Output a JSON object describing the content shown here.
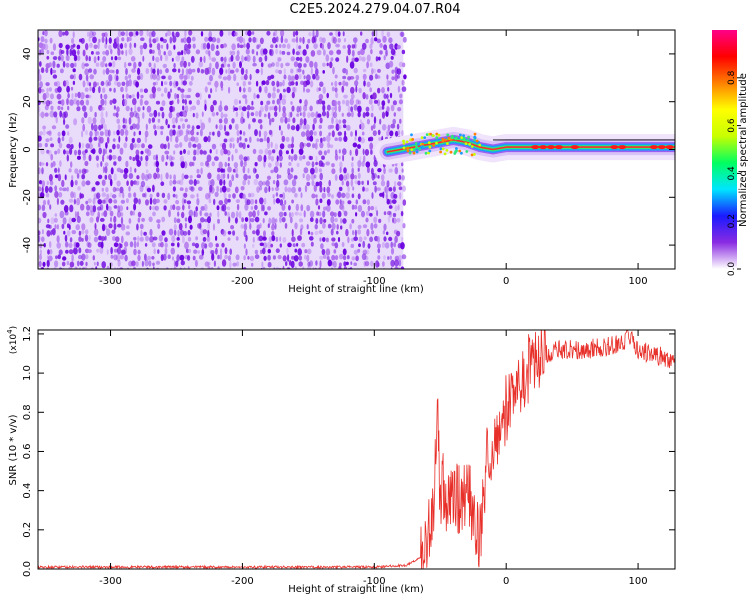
{
  "title": "C2E5.2024.279.04.07.R04",
  "chart_data": [
    {
      "type": "heatmap",
      "xlabel": "Height of straight line (km)",
      "ylabel": "Frequency (Hz)",
      "xlim": [
        -355,
        128
      ],
      "ylim": [
        -50,
        50
      ],
      "x_ticks": [
        -300,
        -200,
        -100,
        0,
        100
      ],
      "y_ticks": [
        -40,
        -20,
        0,
        20,
        40
      ],
      "noise_region": {
        "x_from": -355,
        "x_to": -78,
        "freq_from": -50,
        "freq_to": 50,
        "color": "#6a00e0"
      },
      "carrier_track": [
        {
          "x": -90,
          "f": -1
        },
        {
          "x": -80,
          "f": 0
        },
        {
          "x": -70,
          "f": 1
        },
        {
          "x": -60,
          "f": 2
        },
        {
          "x": -50,
          "f": 3
        },
        {
          "x": -40,
          "f": 4
        },
        {
          "x": -30,
          "f": 3
        },
        {
          "x": -20,
          "f": 1
        },
        {
          "x": -10,
          "f": 0
        },
        {
          "x": 0,
          "f": 1
        },
        {
          "x": 10,
          "f": 1
        },
        {
          "x": 20,
          "f": 1
        },
        {
          "x": 40,
          "f": 1
        },
        {
          "x": 60,
          "f": 1
        },
        {
          "x": 80,
          "f": 1
        },
        {
          "x": 100,
          "f": 1
        },
        {
          "x": 128,
          "f": 1
        }
      ],
      "colorbar": {
        "label": "Normalized spectral amplitude",
        "range": [
          0,
          1
        ],
        "ticks": [
          0.0,
          0.2,
          0.4,
          0.6,
          0.8
        ],
        "colors": [
          "#ffffff",
          "#8a2be2",
          "#1a1aff",
          "#00e5ff",
          "#00ff60",
          "#c8ff00",
          "#ffff00",
          "#ff8000",
          "#ff0000",
          "#ff0088"
        ]
      }
    },
    {
      "type": "line",
      "xlabel": "Height of straight line (km)",
      "ylabel": "SNR (10 * v/v)",
      "y_multiplier": "(x10",
      "y_multiplier_exp": "4",
      "xlim": [
        -355,
        128
      ],
      "ylim": [
        0,
        1.22
      ],
      "x_ticks": [
        -300,
        -200,
        -100,
        0,
        100
      ],
      "y_ticks": [
        0.0,
        0.2,
        0.4,
        0.6,
        0.8,
        1.0,
        1.2
      ],
      "color": "#e8302a",
      "series": [
        {
          "x": [
            -355,
            -300,
            -200,
            -100,
            -75,
            -65,
            -60,
            -55,
            -52,
            -50,
            -48,
            -45,
            -40,
            -35,
            -30,
            -25,
            -20,
            -15,
            -10,
            -5,
            0,
            10,
            20,
            30,
            40,
            60,
            80,
            95,
            100,
            110,
            120,
            128
          ],
          "values": [
            0.01,
            0.01,
            0.01,
            0.01,
            0.02,
            0.06,
            0.15,
            0.3,
            0.9,
            0.3,
            0.45,
            0.3,
            0.38,
            0.35,
            0.4,
            0.3,
            0.15,
            0.55,
            0.65,
            0.72,
            0.82,
            0.95,
            1.05,
            1.1,
            1.12,
            1.12,
            1.14,
            1.18,
            1.12,
            1.1,
            1.08,
            1.06
          ]
        }
      ]
    }
  ]
}
